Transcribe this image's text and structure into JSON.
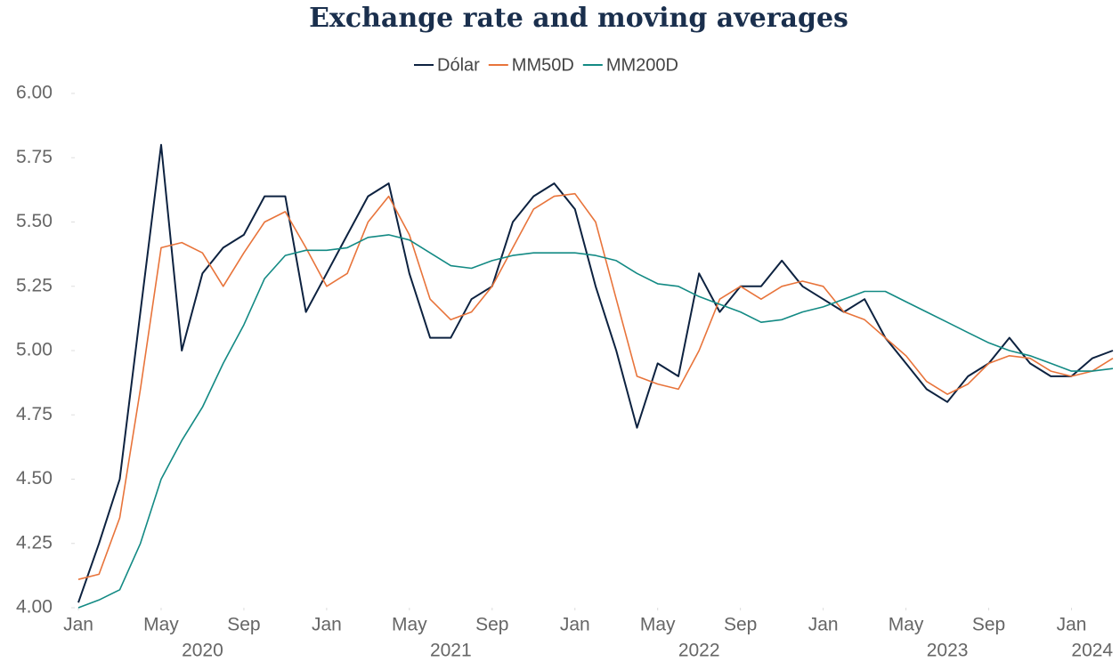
{
  "chart_data": {
    "type": "line",
    "title": "Exchange rate and moving averages",
    "x": [
      "2020-01",
      "2020-02",
      "2020-03",
      "2020-04",
      "2020-05",
      "2020-06",
      "2020-07",
      "2020-08",
      "2020-09",
      "2020-10",
      "2020-11",
      "2020-12",
      "2021-01",
      "2021-02",
      "2021-03",
      "2021-04",
      "2021-05",
      "2021-06",
      "2021-07",
      "2021-08",
      "2021-09",
      "2021-10",
      "2021-11",
      "2021-12",
      "2022-01",
      "2022-02",
      "2022-03",
      "2022-04",
      "2022-05",
      "2022-06",
      "2022-07",
      "2022-08",
      "2022-09",
      "2022-10",
      "2022-11",
      "2022-12",
      "2023-01",
      "2023-02",
      "2023-03",
      "2023-04",
      "2023-05",
      "2023-06",
      "2023-07",
      "2023-08",
      "2023-09",
      "2023-10",
      "2023-11",
      "2023-12",
      "2024-01",
      "2024-02",
      "2024-03"
    ],
    "series": [
      {
        "name": "Dólar",
        "color": "#0d2240",
        "values": [
          4.02,
          4.25,
          4.5,
          5.15,
          5.8,
          5.0,
          5.3,
          5.4,
          5.45,
          5.6,
          5.6,
          5.15,
          5.3,
          5.45,
          5.6,
          5.65,
          5.3,
          5.05,
          5.05,
          5.2,
          5.25,
          5.5,
          5.6,
          5.65,
          5.55,
          5.25,
          5.0,
          4.7,
          4.95,
          4.9,
          5.3,
          5.15,
          5.25,
          5.25,
          5.35,
          5.25,
          5.2,
          5.15,
          5.2,
          5.05,
          4.95,
          4.85,
          4.8,
          4.9,
          4.95,
          5.05,
          4.95,
          4.9,
          4.9,
          4.97,
          5.0
        ]
      },
      {
        "name": "MM50D",
        "color": "#e8743b",
        "values": [
          4.11,
          4.13,
          4.35,
          4.85,
          5.4,
          5.42,
          5.38,
          5.25,
          5.38,
          5.5,
          5.54,
          5.4,
          5.25,
          5.3,
          5.5,
          5.6,
          5.45,
          5.2,
          5.12,
          5.15,
          5.25,
          5.4,
          5.55,
          5.6,
          5.61,
          5.5,
          5.2,
          4.9,
          4.87,
          4.85,
          5.0,
          5.2,
          5.25,
          5.2,
          5.25,
          5.27,
          5.25,
          5.15,
          5.12,
          5.05,
          4.98,
          4.88,
          4.83,
          4.87,
          4.95,
          4.98,
          4.97,
          4.92,
          4.9,
          4.92,
          4.97
        ]
      },
      {
        "name": "MM200D",
        "color": "#138a84",
        "values": [
          4.0,
          4.03,
          4.07,
          4.25,
          4.5,
          4.65,
          4.78,
          4.95,
          5.1,
          5.28,
          5.37,
          5.39,
          5.39,
          5.4,
          5.44,
          5.45,
          5.43,
          5.38,
          5.33,
          5.32,
          5.35,
          5.37,
          5.38,
          5.38,
          5.38,
          5.37,
          5.35,
          5.3,
          5.26,
          5.25,
          5.21,
          5.18,
          5.15,
          5.11,
          5.12,
          5.15,
          5.17,
          5.2,
          5.23,
          5.23,
          5.19,
          5.15,
          5.11,
          5.07,
          5.03,
          5.0,
          4.98,
          4.95,
          4.92,
          4.92,
          4.93
        ]
      }
    ],
    "xlim": [
      "2020-01",
      "2024-03"
    ],
    "xticks": [
      {
        "value": "2020-01",
        "label": "Jan"
      },
      {
        "value": "2020-05",
        "label": "May"
      },
      {
        "value": "2020-09",
        "label": "Sep"
      },
      {
        "value": "2021-01",
        "label": "Jan"
      },
      {
        "value": "2021-05",
        "label": "May"
      },
      {
        "value": "2021-09",
        "label": "Sep"
      },
      {
        "value": "2022-01",
        "label": "Jan"
      },
      {
        "value": "2022-05",
        "label": "May"
      },
      {
        "value": "2022-09",
        "label": "Sep"
      },
      {
        "value": "2023-01",
        "label": "Jan"
      },
      {
        "value": "2023-05",
        "label": "May"
      },
      {
        "value": "2023-09",
        "label": "Sep"
      },
      {
        "value": "2024-01",
        "label": "Jan"
      }
    ],
    "year_labels": [
      {
        "value": "2020-07",
        "label": "2020"
      },
      {
        "value": "2021-07",
        "label": "2021"
      },
      {
        "value": "2022-07",
        "label": "2022"
      },
      {
        "value": "2023-07",
        "label": "2023"
      },
      {
        "value": "2024-02",
        "label": "2024"
      }
    ],
    "ylim": [
      4,
      6
    ],
    "yticks": [
      {
        "value": 4,
        "label": "4.00"
      },
      4.25,
      {
        "value": 4.5,
        "label": "4.50"
      },
      4.75,
      {
        "value": 5,
        "label": "5.00"
      },
      5.25,
      {
        "value": 5.5,
        "label": "5.50"
      },
      5.75,
      {
        "value": 6,
        "label": "6.00"
      }
    ],
    "legend": "top"
  }
}
